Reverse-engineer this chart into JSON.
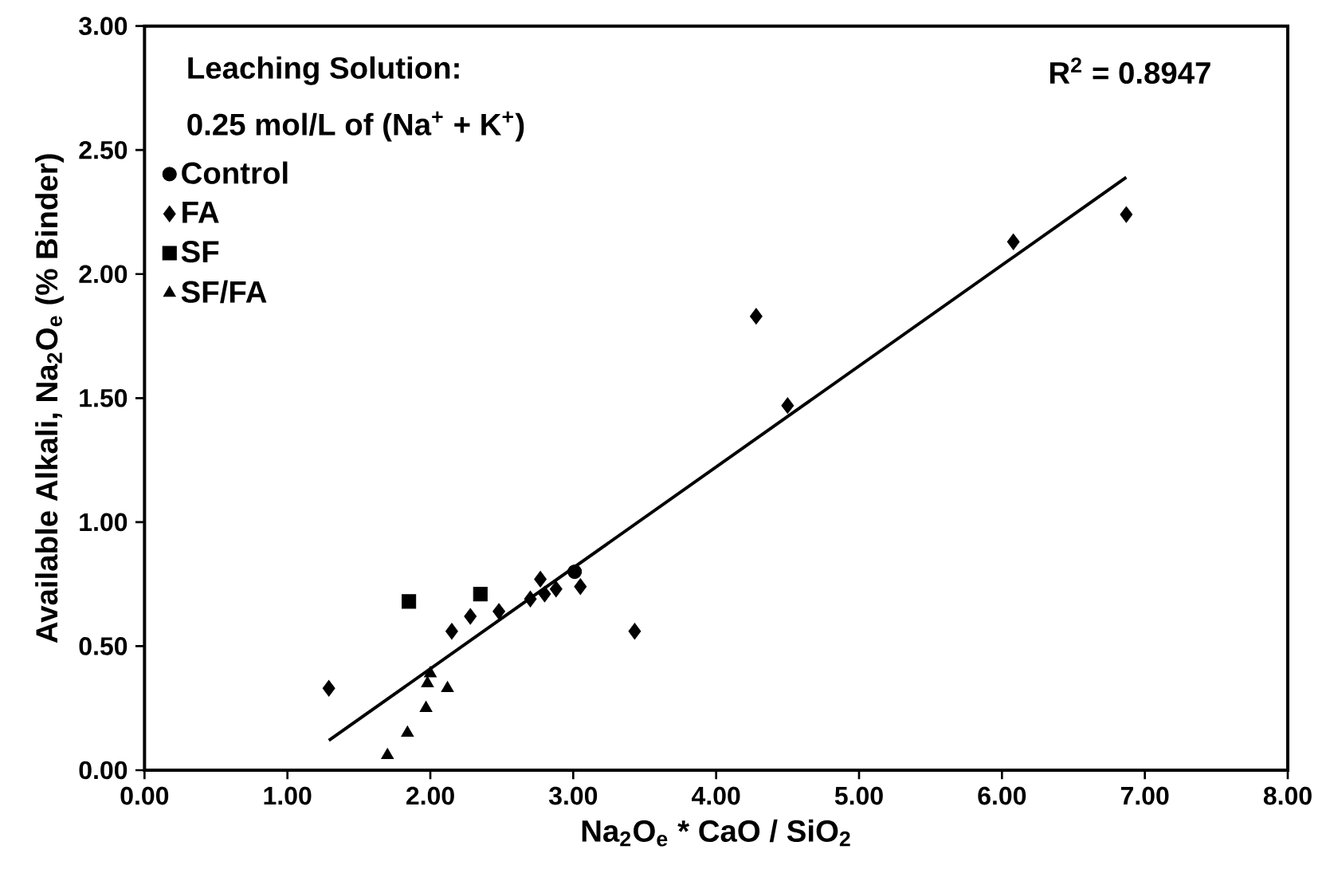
{
  "chart_data": {
    "type": "scatter",
    "xlabel": "Na$_{2}$O$_{e}$ * CaO / SiO$_{2}$",
    "ylabel": "Available Alkali, Na$_{2}$O$_{e}$ (% Binder)",
    "annotations": [
      "Leaching Solution:",
      "0.25 mol/L of (Na$^{+}$ + K$^{+}$)",
      "R$^{2}$ = 0.8947"
    ],
    "xlim": [
      0,
      8
    ],
    "ylim": [
      0,
      3
    ],
    "xticks": [
      {
        "value": 0,
        "label": "0.00"
      },
      {
        "value": 1,
        "label": "1.00"
      },
      {
        "value": 2,
        "label": "2.00"
      },
      {
        "value": 3,
        "label": "3.00"
      },
      {
        "value": 4,
        "label": "4.00"
      },
      {
        "value": 5,
        "label": "5.00"
      },
      {
        "value": 6,
        "label": "6.00"
      },
      {
        "value": 7,
        "label": "7.00"
      },
      {
        "value": 8,
        "label": "8.00"
      }
    ],
    "yticks": [
      {
        "value": 0,
        "label": "0.00"
      },
      {
        "value": 0.5,
        "label": "0.50"
      },
      {
        "value": 1,
        "label": "1.00"
      },
      {
        "value": 1.5,
        "label": "1.50"
      },
      {
        "value": 2,
        "label": "2.00"
      },
      {
        "value": 2.5,
        "label": "2.50"
      },
      {
        "value": 3,
        "label": "3.00"
      }
    ],
    "legend": "top left",
    "grid": false,
    "series": [
      {
        "name": "Control",
        "color": "#000000",
        "marker": "circle",
        "x": [
          3.01
        ],
        "values": [
          0.8
        ]
      },
      {
        "name": "FA",
        "color": "#000000",
        "marker": "diamond",
        "x": [
          1.29,
          2.15,
          2.28,
          2.48,
          2.7,
          2.77,
          2.8,
          2.88,
          3.05,
          3.43,
          4.28,
          4.5,
          6.08,
          6.87
        ],
        "values": [
          0.33,
          0.56,
          0.62,
          0.64,
          0.69,
          0.77,
          0.71,
          0.73,
          0.74,
          0.56,
          1.83,
          1.47,
          2.13,
          2.24
        ]
      },
      {
        "name": "SF",
        "color": "#000000",
        "marker": "square",
        "x": [
          1.85,
          2.35
        ],
        "values": [
          0.68,
          0.71
        ]
      },
      {
        "name": "SF/FA",
        "color": "#000000",
        "marker": "triangle",
        "x": [
          1.7,
          1.84,
          1.97,
          1.98,
          2.0,
          2.12
        ],
        "values": [
          0.06,
          0.15,
          0.25,
          0.35,
          0.39,
          0.33
        ]
      },
      {
        "type": "line",
        "color": "#000000",
        "marker": "none",
        "line_style": "solid",
        "x": [
          1.29,
          6.87
        ],
        "values": [
          0.12,
          2.39
        ]
      }
    ]
  }
}
